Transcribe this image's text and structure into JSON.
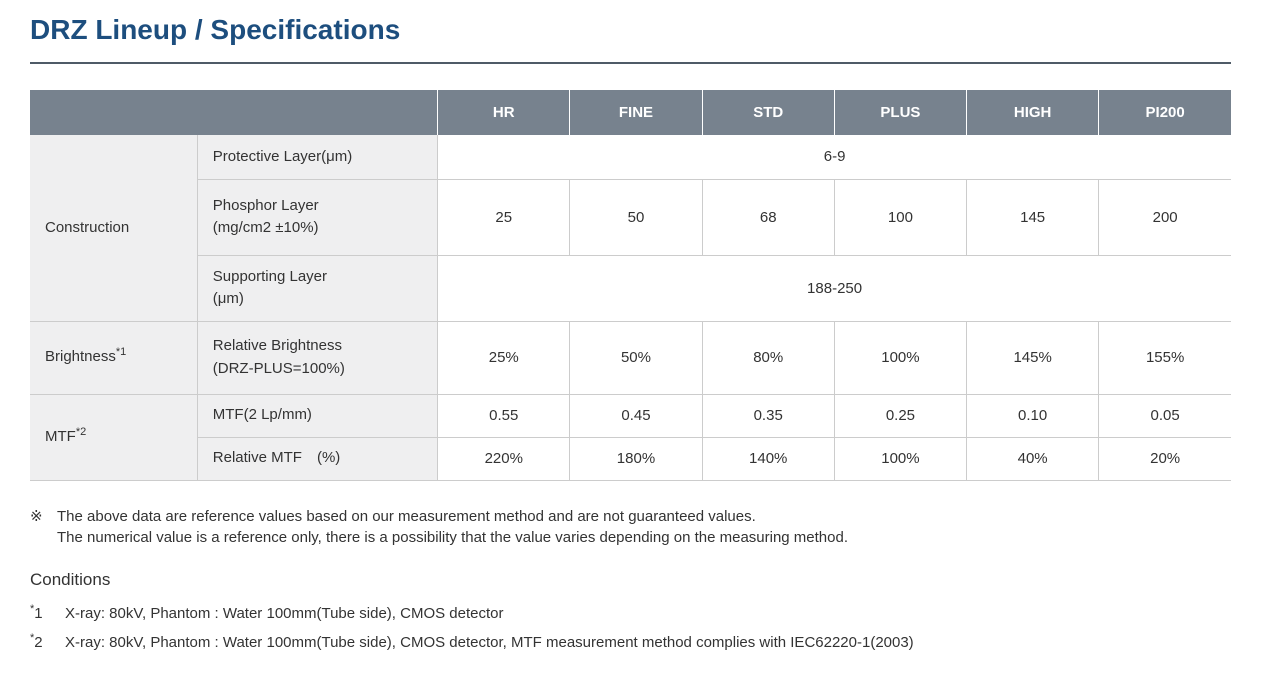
{
  "page": {
    "title": "DRZ Lineup / Specifications"
  },
  "colors": {
    "title_color": "#1d4e7e",
    "divider_color": "#4f5b67",
    "header_bg": "#77828e",
    "header_text": "#ffffff",
    "label_bg": "#efeff0",
    "border_color": "#cccccc",
    "text_color": "#333333"
  },
  "table": {
    "columns": [
      "HR",
      "FINE",
      "STD",
      "PLUS",
      "HIGH",
      "PI200"
    ],
    "rows": [
      {
        "cells": [
          {
            "type": "rowhead",
            "name": "row-label-construction",
            "text": "Construction",
            "rowspan": 3
          },
          {
            "type": "sublabel",
            "name": "sublabel-protective-layer",
            "lines": [
              "Protective Layer(μm)"
            ]
          },
          {
            "type": "value",
            "name": "value-protective-layer",
            "text": "6-9",
            "colspan": 6
          }
        ]
      },
      {
        "cells": [
          {
            "type": "sublabel",
            "name": "sublabel-phosphor-layer",
            "lines": [
              "Phosphor Layer",
              "(mg/cm2 ±10%)"
            ]
          },
          {
            "type": "value",
            "name": "value-phosphor-hr",
            "text": "25"
          },
          {
            "type": "value",
            "name": "value-phosphor-fine",
            "text": "50"
          },
          {
            "type": "value",
            "name": "value-phosphor-std",
            "text": "68"
          },
          {
            "type": "value",
            "name": "value-phosphor-plus",
            "text": "100"
          },
          {
            "type": "value",
            "name": "value-phosphor-high",
            "text": "145"
          },
          {
            "type": "value",
            "name": "value-phosphor-pi200",
            "text": "200"
          }
        ]
      },
      {
        "cells": [
          {
            "type": "sublabel",
            "name": "sublabel-supporting-layer",
            "lines": [
              "Supporting Layer",
              "(μm)"
            ]
          },
          {
            "type": "value",
            "name": "value-supporting-layer",
            "text": "188-250",
            "colspan": 6
          }
        ]
      },
      {
        "cells": [
          {
            "type": "rowhead",
            "name": "row-label-brightness",
            "text": "Brightness",
            "sup": "*1"
          },
          {
            "type": "sublabel",
            "name": "sublabel-relative-brightness",
            "lines": [
              "Relative Brightness",
              "(DRZ-PLUS=100%)"
            ]
          },
          {
            "type": "value",
            "name": "value-brightness-hr",
            "text": "25%"
          },
          {
            "type": "value",
            "name": "value-brightness-fine",
            "text": "50%"
          },
          {
            "type": "value",
            "name": "value-brightness-std",
            "text": "80%"
          },
          {
            "type": "value",
            "name": "value-brightness-plus",
            "text": "100%"
          },
          {
            "type": "value",
            "name": "value-brightness-high",
            "text": "145%"
          },
          {
            "type": "value",
            "name": "value-brightness-pi200",
            "text": "155%"
          }
        ]
      },
      {
        "cells": [
          {
            "type": "rowhead",
            "name": "row-label-mtf",
            "text": "MTF",
            "sup": "*2",
            "rowspan": 2
          },
          {
            "type": "sublabel",
            "name": "sublabel-mtf-2lpmm",
            "lines": [
              "MTF(2 Lp/mm)"
            ]
          },
          {
            "type": "value",
            "name": "value-mtf-hr",
            "text": "0.55"
          },
          {
            "type": "value",
            "name": "value-mtf-fine",
            "text": "0.45"
          },
          {
            "type": "value",
            "name": "value-mtf-std",
            "text": "0.35"
          },
          {
            "type": "value",
            "name": "value-mtf-plus",
            "text": "0.25"
          },
          {
            "type": "value",
            "name": "value-mtf-high",
            "text": "0.10"
          },
          {
            "type": "value",
            "name": "value-mtf-pi200",
            "text": "0.05"
          }
        ]
      },
      {
        "cells": [
          {
            "type": "sublabel",
            "name": "sublabel-relative-mtf",
            "lines": [
              "Relative MTF　(%)"
            ]
          },
          {
            "type": "value",
            "name": "value-relative-mtf-hr",
            "text": "220%"
          },
          {
            "type": "value",
            "name": "value-relative-mtf-fine",
            "text": "180%"
          },
          {
            "type": "value",
            "name": "value-relative-mtf-std",
            "text": "140%"
          },
          {
            "type": "value",
            "name": "value-relative-mtf-plus",
            "text": "100%"
          },
          {
            "type": "value",
            "name": "value-relative-mtf-high",
            "text": "40%"
          },
          {
            "type": "value",
            "name": "value-relative-mtf-pi200",
            "text": "20%"
          }
        ]
      }
    ]
  },
  "notes": {
    "marker": "※",
    "lines": [
      "The above data are reference values based on our measurement method and are not guaranteed values.",
      "The numerical value is a reference only, there is a possibility that the value varies depending on the measuring method."
    ]
  },
  "conditions": {
    "heading": "Conditions",
    "items": [
      {
        "star": "*",
        "num": "1",
        "text": "X-ray: 80kV, Phantom : Water 100mm(Tube side), CMOS detector"
      },
      {
        "star": "*",
        "num": "2",
        "text": "X-ray: 80kV, Phantom : Water 100mm(Tube side), CMOS detector, MTF measurement method complies with IEC62220-1(2003)"
      }
    ]
  }
}
